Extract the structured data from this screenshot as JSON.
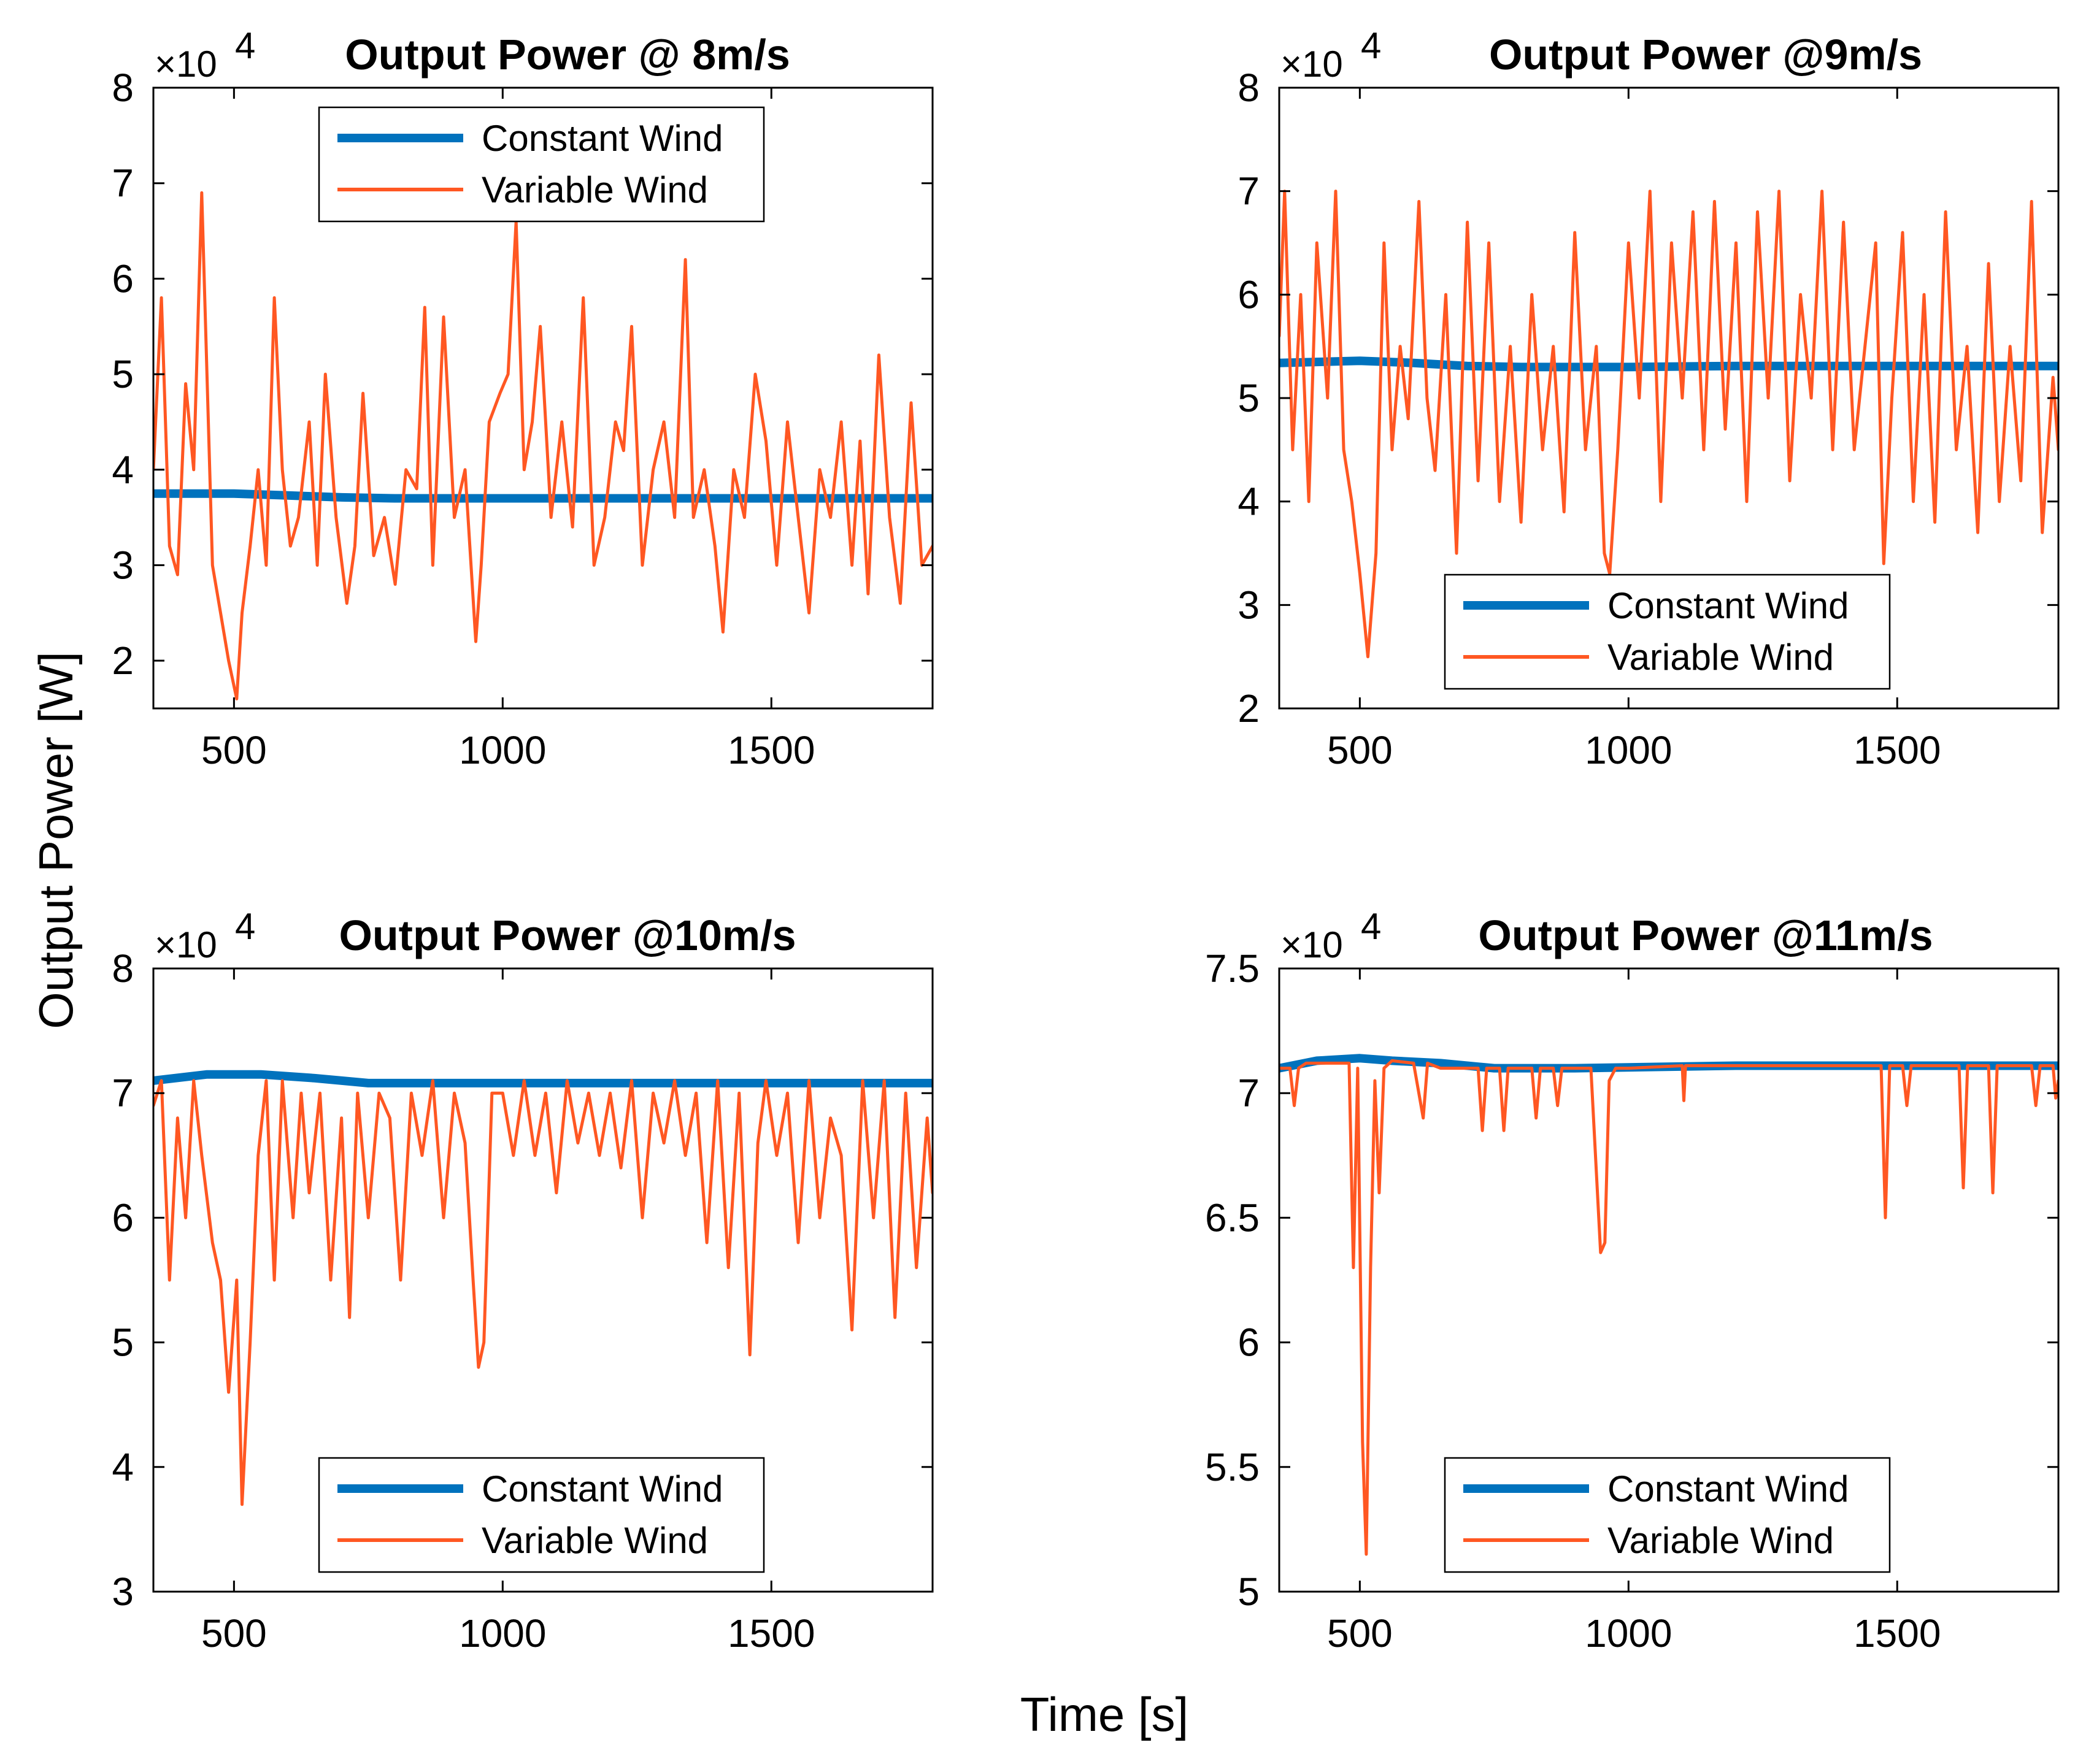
{
  "figure": {
    "ylabel": "Output Power [W]",
    "xlabel": "Time [s]"
  },
  "colors": {
    "constant": "#0072BD",
    "variable": "#FF5722",
    "axis": "#000000"
  },
  "chart_data": [
    {
      "type": "line",
      "title": "Output Power @ 8m/s",
      "exponent": {
        "times": "×10",
        "power": "4"
      },
      "xlim": [
        350,
        1800
      ],
      "ylim": [
        1.5,
        8
      ],
      "xticks": [
        500,
        1000,
        1500
      ],
      "xtick_labels": [
        "500",
        "1000",
        "1500"
      ],
      "yticks": [
        2,
        3,
        4,
        5,
        6,
        7,
        8
      ],
      "ytick_labels": [
        "2",
        "3",
        "4",
        "5",
        "6",
        "7",
        "8"
      ],
      "legend_position": "top-center",
      "series": [
        {
          "name": "Constant Wind",
          "role": "constant",
          "x": [
            350,
            500,
            600,
            700,
            800,
            1000,
            1200,
            1500,
            1800
          ],
          "values": [
            3.75,
            3.75,
            3.73,
            3.71,
            3.7,
            3.7,
            3.7,
            3.7,
            3.7
          ]
        },
        {
          "name": "Variable Wind",
          "role": "variable",
          "x": [
            350,
            365,
            380,
            395,
            410,
            425,
            440,
            460,
            475,
            490,
            505,
            515,
            530,
            545,
            560,
            575,
            590,
            605,
            620,
            640,
            655,
            670,
            690,
            710,
            725,
            740,
            760,
            780,
            800,
            820,
            840,
            855,
            870,
            890,
            910,
            930,
            950,
            960,
            975,
            995,
            1010,
            1025,
            1040,
            1055,
            1070,
            1090,
            1110,
            1130,
            1150,
            1170,
            1190,
            1210,
            1225,
            1240,
            1260,
            1280,
            1300,
            1320,
            1340,
            1355,
            1375,
            1395,
            1410,
            1430,
            1450,
            1470,
            1490,
            1510,
            1530,
            1550,
            1570,
            1590,
            1610,
            1630,
            1650,
            1665,
            1680,
            1700,
            1720,
            1740,
            1760,
            1780,
            1800
          ],
          "values": [
            4.0,
            5.8,
            3.2,
            2.9,
            4.9,
            4.0,
            6.9,
            3.0,
            2.5,
            2.0,
            1.6,
            2.5,
            3.2,
            4.0,
            3.0,
            5.8,
            4.0,
            3.2,
            3.5,
            4.5,
            3.0,
            5.0,
            3.5,
            2.6,
            3.2,
            4.8,
            3.1,
            3.5,
            2.8,
            4.0,
            3.8,
            5.7,
            3.0,
            5.6,
            3.5,
            4.0,
            2.2,
            3.0,
            4.5,
            4.8,
            5.0,
            6.6,
            4.0,
            4.5,
            5.5,
            3.5,
            4.5,
            3.4,
            5.8,
            3.0,
            3.5,
            4.5,
            4.2,
            5.5,
            3.0,
            4.0,
            4.5,
            3.5,
            6.2,
            3.5,
            4.0,
            3.2,
            2.3,
            4.0,
            3.5,
            5.0,
            4.3,
            3.0,
            4.5,
            3.5,
            2.5,
            4.0,
            3.5,
            4.5,
            3.0,
            4.3,
            2.7,
            5.2,
            3.5,
            2.6,
            4.7,
            3.0,
            3.2
          ]
        }
      ],
      "legend": [
        "Constant Wind",
        "Variable Wind"
      ]
    },
    {
      "type": "line",
      "title": "Output Power @9m/s",
      "exponent": {
        "times": "×10",
        "power": "4"
      },
      "xlim": [
        350,
        1800
      ],
      "ylim": [
        2,
        8
      ],
      "xticks": [
        500,
        1000,
        1500
      ],
      "xtick_labels": [
        "500",
        "1000",
        "1500"
      ],
      "yticks": [
        2,
        3,
        4,
        5,
        6,
        7,
        8
      ],
      "ytick_labels": [
        "2",
        "3",
        "4",
        "5",
        "6",
        "7",
        "8"
      ],
      "legend_position": "bottom-center",
      "series": [
        {
          "name": "Constant Wind",
          "role": "constant",
          "x": [
            350,
            500,
            600,
            700,
            800,
            1000,
            1200,
            1500,
            1800
          ],
          "values": [
            5.34,
            5.36,
            5.34,
            5.31,
            5.3,
            5.3,
            5.31,
            5.31,
            5.31
          ]
        },
        {
          "name": "Variable Wind",
          "role": "variable",
          "x": [
            350,
            360,
            375,
            390,
            405,
            420,
            440,
            455,
            470,
            485,
            500,
            515,
            530,
            545,
            560,
            575,
            590,
            610,
            625,
            640,
            660,
            680,
            700,
            720,
            740,
            760,
            780,
            800,
            820,
            840,
            860,
            880,
            900,
            920,
            940,
            955,
            965,
            980,
            1000,
            1020,
            1040,
            1060,
            1080,
            1100,
            1120,
            1140,
            1160,
            1180,
            1200,
            1220,
            1240,
            1260,
            1280,
            1300,
            1320,
            1340,
            1360,
            1380,
            1400,
            1420,
            1440,
            1460,
            1475,
            1490,
            1510,
            1530,
            1550,
            1570,
            1590,
            1610,
            1630,
            1650,
            1670,
            1690,
            1710,
            1730,
            1750,
            1770,
            1790,
            1800
          ],
          "values": [
            5.6,
            7.0,
            4.5,
            6.0,
            4.0,
            6.5,
            5.0,
            7.0,
            4.5,
            4.0,
            3.3,
            2.5,
            3.5,
            6.5,
            4.5,
            5.5,
            4.8,
            6.9,
            5.0,
            4.3,
            6.0,
            3.5,
            6.7,
            4.2,
            6.5,
            4.0,
            5.5,
            3.8,
            6.0,
            4.5,
            5.5,
            3.9,
            6.6,
            4.5,
            5.5,
            3.5,
            3.3,
            4.5,
            6.5,
            5.0,
            7.0,
            4.0,
            6.5,
            5.0,
            6.8,
            4.5,
            6.9,
            4.7,
            6.5,
            4.0,
            6.8,
            5.0,
            7.0,
            4.2,
            6.0,
            5.0,
            7.0,
            4.5,
            6.7,
            4.5,
            5.5,
            6.5,
            3.4,
            5.0,
            6.6,
            4.0,
            6.0,
            3.8,
            6.8,
            4.5,
            5.5,
            3.7,
            6.3,
            4.0,
            5.5,
            4.2,
            6.9,
            3.7,
            5.2,
            4.5
          ]
        }
      ],
      "legend": [
        "Constant Wind",
        "Variable Wind"
      ]
    },
    {
      "type": "line",
      "title": "Output Power @10m/s",
      "exponent": {
        "times": "×10",
        "power": "4"
      },
      "xlim": [
        350,
        1800
      ],
      "ylim": [
        3,
        8
      ],
      "xticks": [
        500,
        1000,
        1500
      ],
      "xtick_labels": [
        "500",
        "1000",
        "1500"
      ],
      "yticks": [
        3,
        4,
        5,
        6,
        7,
        8
      ],
      "ytick_labels": [
        "3",
        "4",
        "5",
        "6",
        "7",
        "8"
      ],
      "legend_position": "bottom-center",
      "series": [
        {
          "name": "Constant Wind",
          "role": "constant",
          "x": [
            350,
            450,
            550,
            650,
            750,
            900,
            1200,
            1500,
            1800
          ],
          "values": [
            7.1,
            7.15,
            7.15,
            7.12,
            7.08,
            7.08,
            7.08,
            7.08,
            7.08
          ]
        },
        {
          "name": "Variable Wind",
          "role": "variable",
          "x": [
            350,
            365,
            380,
            395,
            410,
            425,
            440,
            460,
            475,
            490,
            505,
            515,
            530,
            545,
            560,
            575,
            590,
            610,
            625,
            640,
            660,
            680,
            700,
            715,
            730,
            750,
            770,
            790,
            810,
            830,
            850,
            870,
            890,
            910,
            930,
            945,
            955,
            965,
            980,
            1000,
            1020,
            1040,
            1060,
            1080,
            1100,
            1120,
            1140,
            1160,
            1180,
            1200,
            1220,
            1240,
            1260,
            1280,
            1300,
            1320,
            1340,
            1360,
            1380,
            1400,
            1420,
            1440,
            1460,
            1475,
            1490,
            1510,
            1530,
            1550,
            1570,
            1590,
            1610,
            1630,
            1650,
            1670,
            1690,
            1710,
            1730,
            1750,
            1770,
            1790,
            1800
          ],
          "values": [
            6.9,
            7.1,
            5.5,
            6.8,
            6.0,
            7.1,
            6.5,
            5.8,
            5.5,
            4.6,
            5.5,
            3.7,
            5.0,
            6.5,
            7.1,
            5.5,
            7.1,
            6.0,
            7.0,
            6.2,
            7.0,
            5.5,
            6.8,
            5.2,
            7.0,
            6.0,
            7.0,
            6.8,
            5.5,
            7.0,
            6.5,
            7.1,
            6.0,
            7.0,
            6.6,
            5.5,
            4.8,
            5.0,
            7.0,
            7.0,
            6.5,
            7.1,
            6.5,
            7.0,
            6.2,
            7.1,
            6.6,
            7.0,
            6.5,
            7.0,
            6.4,
            7.1,
            6.0,
            7.0,
            6.6,
            7.1,
            6.5,
            7.0,
            5.8,
            7.1,
            5.6,
            7.0,
            4.9,
            6.6,
            7.1,
            6.5,
            7.0,
            5.8,
            7.1,
            6.0,
            6.8,
            6.5,
            5.1,
            7.1,
            6.0,
            7.1,
            5.2,
            7.0,
            5.6,
            6.8,
            6.2
          ]
        }
      ],
      "legend": [
        "Constant Wind",
        "Variable Wind"
      ]
    },
    {
      "type": "line",
      "title": "Output Power @11m/s",
      "exponent": {
        "times": "×10",
        "power": "4"
      },
      "xlim": [
        350,
        1800
      ],
      "ylim": [
        5,
        7.5
      ],
      "xticks": [
        500,
        1000,
        1500
      ],
      "xtick_labels": [
        "500",
        "1000",
        "1500"
      ],
      "yticks": [
        5,
        5.5,
        6,
        6.5,
        7,
        7.5
      ],
      "ytick_labels": [
        "5",
        "5.5",
        "6",
        "6.5",
        "7",
        "7.5"
      ],
      "legend_position": "bottom-center",
      "series": [
        {
          "name": "Constant Wind",
          "role": "constant",
          "x": [
            350,
            420,
            500,
            560,
            650,
            750,
            900,
            1200,
            1500,
            1800
          ],
          "values": [
            7.1,
            7.13,
            7.14,
            7.13,
            7.12,
            7.1,
            7.1,
            7.11,
            7.11,
            7.11
          ]
        },
        {
          "name": "Variable Wind",
          "role": "variable",
          "x": [
            350,
            370,
            378,
            386,
            400,
            440,
            480,
            488,
            496,
            505,
            512,
            520,
            528,
            536,
            545,
            560,
            600,
            618,
            626,
            650,
            720,
            728,
            736,
            760,
            768,
            776,
            820,
            828,
            836,
            860,
            868,
            876,
            930,
            948,
            956,
            964,
            976,
            1000,
            1100,
            1103,
            1106,
            1200,
            1300,
            1400,
            1470,
            1478,
            1486,
            1510,
            1518,
            1526,
            1600,
            1615,
            1623,
            1631,
            1670,
            1678,
            1686,
            1750,
            1758,
            1766,
            1790,
            1795,
            1800
          ],
          "values": [
            7.1,
            7.1,
            6.95,
            7.1,
            7.12,
            7.12,
            7.12,
            6.3,
            7.1,
            5.6,
            5.15,
            6.3,
            7.05,
            6.6,
            7.1,
            7.13,
            7.12,
            6.9,
            7.12,
            7.1,
            7.1,
            6.85,
            7.1,
            7.1,
            6.85,
            7.1,
            7.1,
            6.9,
            7.1,
            7.1,
            6.95,
            7.1,
            7.1,
            6.36,
            6.4,
            7.05,
            7.1,
            7.1,
            7.11,
            6.97,
            7.11,
            7.11,
            7.11,
            7.11,
            7.11,
            6.5,
            7.11,
            7.11,
            6.95,
            7.11,
            7.11,
            7.11,
            6.62,
            7.11,
            7.11,
            6.6,
            7.11,
            7.11,
            6.95,
            7.11,
            7.11,
            6.98,
            7.05
          ]
        }
      ],
      "legend": [
        "Constant Wind",
        "Variable Wind"
      ]
    }
  ]
}
